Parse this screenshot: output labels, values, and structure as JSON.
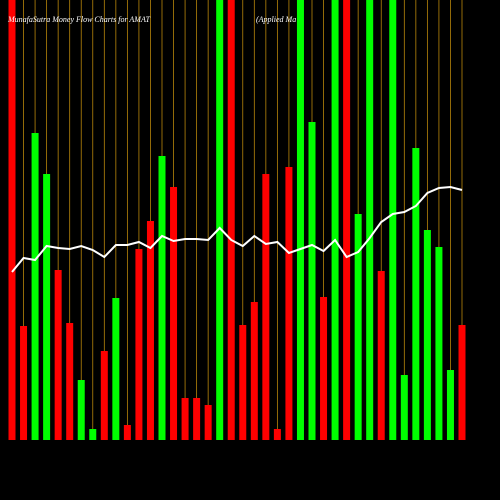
{
  "chart_data": {
    "type": "bar",
    "title": "MunafaSutra  Money Flow  Charts for AMAT",
    "subtitle": "(Applied Ma",
    "categories": [
      null,
      null,
      null,
      null,
      null,
      null,
      null,
      null,
      null,
      null,
      null,
      null,
      null,
      null,
      null,
      null,
      null,
      null,
      null,
      null,
      null,
      null,
      null,
      null,
      null,
      null,
      null,
      null,
      null,
      null,
      null,
      null,
      null,
      null,
      null,
      null,
      null,
      null,
      null,
      null
    ],
    "values": [
      440,
      114,
      307,
      266,
      170,
      117,
      60,
      11,
      89,
      142,
      15,
      191,
      219,
      284,
      253,
      42,
      42,
      35,
      440,
      440,
      115,
      138,
      266,
      11,
      273,
      440,
      318,
      143,
      440,
      440,
      226,
      440,
      169,
      440,
      65,
      292,
      210,
      193,
      70,
      115
    ],
    "colors": [
      "#ff0000",
      "#ff0000",
      "#00ff00",
      "#00ff00",
      "#ff0000",
      "#ff0000",
      "#00ff00",
      "#00ff00",
      "#ff0000",
      "#00ff00",
      "#ff0000",
      "#ff0000",
      "#ff0000",
      "#00ff00",
      "#ff0000",
      "#ff0000",
      "#ff0000",
      "#ff0000",
      "#00ff00",
      "#ff0000",
      "#ff0000",
      "#ff0000",
      "#ff0000",
      "#ff0000",
      "#ff0000",
      "#00ff00",
      "#00ff00",
      "#ff0000",
      "#00ff00",
      "#ff0000",
      "#00ff00",
      "#00ff00",
      "#ff0000",
      "#00ff00",
      "#00ff00",
      "#00ff00",
      "#00ff00",
      "#00ff00",
      "#00ff00",
      "#ff0000"
    ],
    "line_values": [
      168,
      182,
      180,
      194,
      192,
      191,
      194,
      190,
      183,
      195,
      195,
      198,
      192,
      204,
      199,
      201,
      201,
      200,
      212,
      200,
      194,
      204,
      196,
      198,
      187,
      191,
      195,
      189,
      200,
      183,
      188,
      202,
      218,
      226,
      228,
      234,
      247,
      252,
      253,
      250
    ],
    "line_color": "#ffffff",
    "grid_color": "#b8860b",
    "ylim": [
      0,
      440
    ]
  }
}
